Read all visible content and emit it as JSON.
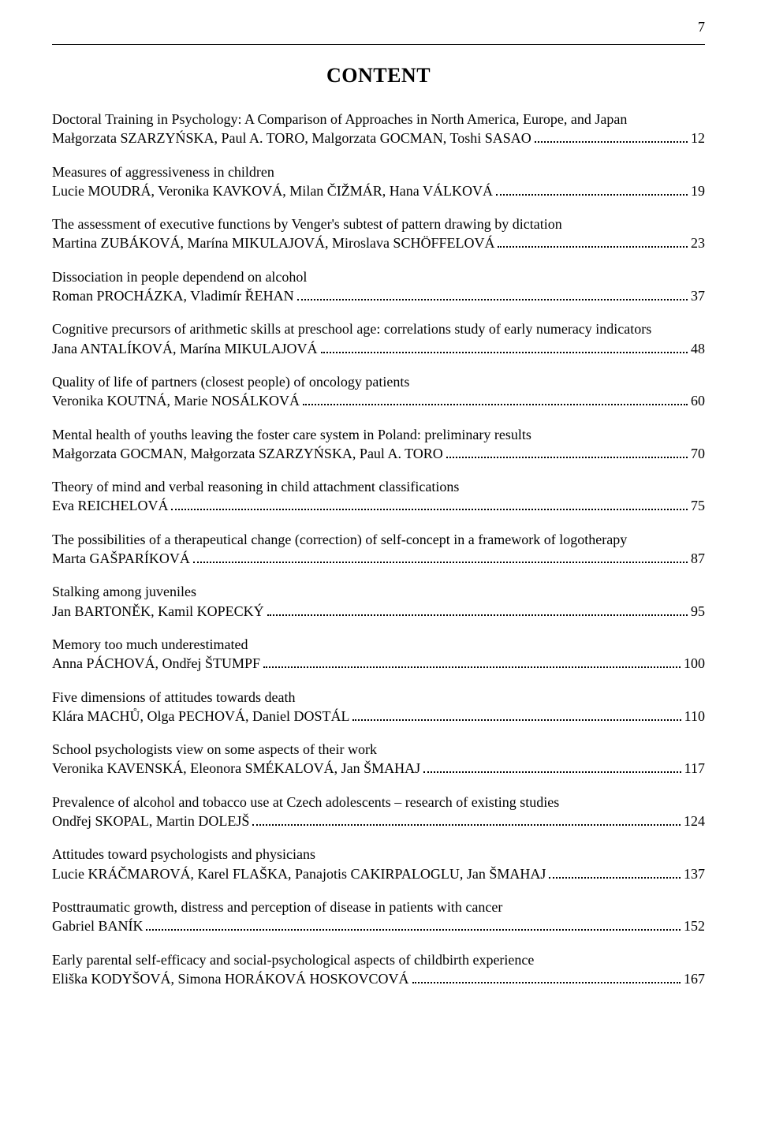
{
  "page_number": "7",
  "heading": "CONTENT",
  "background_color": "#ffffff",
  "text_color": "#000000",
  "entries": [
    {
      "title": "Doctoral Training in Psychology: A Comparison of Approaches in North America, Europe, and Japan",
      "authors": "Małgorzata SZARZYŃSKA, Paul A. TORO, Malgorzata GOCMAN, Toshi SASAO",
      "page": "12"
    },
    {
      "title": "Measures of aggressiveness in children",
      "authors": "Lucie MOUDRÁ, Veronika KAVKOVÁ, Milan ČIŽMÁR, Hana VÁLKOVÁ",
      "page": "19"
    },
    {
      "title": "The assessment of executive functions by Venger's subtest of pattern drawing by dictation",
      "authors": "Martina ZUBÁKOVÁ, Marína MIKULAJOVÁ, Miroslava SCHÖFFELOVÁ",
      "page": "23"
    },
    {
      "title": "Dissociation in people dependend on alcohol",
      "authors": "Roman PROCHÁZKA, Vladimír ŘEHAN",
      "page": "37"
    },
    {
      "title": "Cognitive precursors of arithmetic skills at preschool age: correlations study of early numeracy indicators",
      "authors": "Jana ANTALÍKOVÁ, Marína MIKULAJOVÁ",
      "page": "48"
    },
    {
      "title": "Quality of life of partners (closest people) of oncology patients",
      "authors": "Veronika KOUTNÁ, Marie NOSÁLKOVÁ",
      "page": "60"
    },
    {
      "title": "Mental health of youths leaving the foster care system in Poland: preliminary results",
      "authors": "Małgorzata GOCMAN, Małgorzata SZARZYŃSKA, Paul A. TORO",
      "page": "70"
    },
    {
      "title": "Theory of mind and verbal reasoning in child attachment classifications",
      "authors": "Eva REICHELOVÁ",
      "page": "75"
    },
    {
      "title": "The possibilities of a therapeutical change (correction) of self-concept in a framework of logotherapy",
      "authors": "Marta GAŠPARÍKOVÁ",
      "page": "87"
    },
    {
      "title": "Stalking among juveniles",
      "authors": "Jan BARTONĚK, Kamil KOPECKÝ",
      "page": "95"
    },
    {
      "title": "Memory too much underestimated",
      "authors": "Anna PÁCHOVÁ, Ondřej ŠTUMPF",
      "page": "100"
    },
    {
      "title": "Five dimensions of attitudes towards death",
      "authors": "Klára MACHŮ, Olga PECHOVÁ, Daniel DOSTÁL",
      "page": "110"
    },
    {
      "title": "School psychologists view on some aspects of their work",
      "authors": "Veronika KAVENSKÁ, Eleonora SMÉKALOVÁ, Jan ŠMAHAJ",
      "page": "117"
    },
    {
      "title": "Prevalence of alcohol and tobacco use at Czech adolescents – research of existing studies",
      "authors": "Ondřej SKOPAL, Martin DOLEJŠ",
      "page": "124"
    },
    {
      "title": "Attitudes toward psychologists and physicians",
      "authors": "Lucie KRÁČMAROVÁ, Karel FLAŠKA, Panajotis CAKIRPALOGLU, Jan ŠMAHAJ",
      "page": "137"
    },
    {
      "title": "Posttraumatic growth, distress and perception of disease in patients with cancer",
      "authors": "Gabriel BANÍK",
      "page": "152"
    },
    {
      "title": "Early parental self-efficacy and social-psychological aspects of childbirth experience",
      "authors": "Eliška KODYŠOVÁ, Simona HORÁKOVÁ HOSKOVCOVÁ",
      "page": "167"
    }
  ]
}
